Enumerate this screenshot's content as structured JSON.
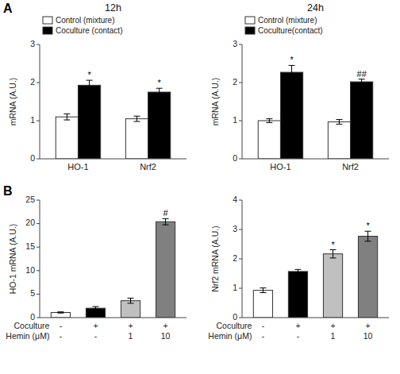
{
  "chart_data": [
    {
      "type": "bar",
      "title": "12h",
      "categories": [
        "HO-1",
        "Nrf2"
      ],
      "series": [
        {
          "name": "Control (mixture)",
          "color": "#ffffff",
          "values": [
            1.1,
            1.05
          ],
          "errors": [
            0.08,
            0.07
          ]
        },
        {
          "name": "Coculture (contact)",
          "color": "#000000",
          "values": [
            1.93,
            1.75
          ],
          "errors": [
            0.13,
            0.1
          ],
          "significance": [
            "*",
            "*"
          ]
        }
      ],
      "y_label": "mRNA (A.U.)",
      "ylim": [
        0,
        3
      ],
      "yticks": [
        0,
        1,
        2,
        3
      ],
      "legend": "upper left",
      "grid": false,
      "annotations": [
        {
          "text": "A"
        }
      ]
    },
    {
      "type": "bar",
      "title": "24h",
      "categories": [
        "HO-1",
        "Nrf2"
      ],
      "series": [
        {
          "name": "Control (mixture)",
          "color": "#ffffff",
          "values": [
            1.0,
            0.97
          ],
          "errors": [
            0.05,
            0.06
          ]
        },
        {
          "name": "Coculture(contact)",
          "color": "#000000",
          "values": [
            2.27,
            2.02
          ],
          "errors": [
            0.18,
            0.07
          ],
          "significance": [
            "*",
            "##"
          ]
        }
      ],
      "y_label": "mRNA (A.U.)",
      "ylim": [
        0,
        3
      ],
      "yticks": [
        0,
        1,
        2,
        3
      ],
      "legend": "upper left",
      "grid": false
    },
    {
      "type": "bar",
      "category_rows": [
        {
          "label": "Coculture",
          "categories": [
            "-",
            "+",
            "+",
            "+"
          ]
        },
        {
          "label": "Hemin (μM)",
          "categories": [
            "-",
            "-",
            "1",
            "10"
          ]
        }
      ],
      "values": [
        1.1,
        2.0,
        3.6,
        20.4
      ],
      "errors": [
        0.12,
        0.35,
        0.55,
        0.65
      ],
      "colors": [
        "#ffffff",
        "#000000",
        "#c0c0c0",
        "#808080"
      ],
      "significance": [
        null,
        null,
        null,
        "#"
      ],
      "y_label": "HO-1 mRNA (A.U.)",
      "ylim": [
        0,
        25
      ],
      "yticks": [
        0,
        5,
        10,
        15,
        20,
        25
      ],
      "grid": false,
      "annotations": [
        {
          "text": "B"
        }
      ]
    },
    {
      "type": "bar",
      "category_rows": [
        {
          "label": "Coculture",
          "categories": [
            "-",
            "+",
            "+",
            "+"
          ]
        },
        {
          "label": "Hemin (μM)",
          "categories": [
            "-",
            "-",
            "1",
            "10"
          ]
        }
      ],
      "values": [
        0.93,
        1.57,
        2.17,
        2.77
      ],
      "errors": [
        0.08,
        0.07,
        0.14,
        0.17
      ],
      "colors": [
        "#ffffff",
        "#000000",
        "#c0c0c0",
        "#808080"
      ],
      "significance": [
        null,
        null,
        "*",
        "*"
      ],
      "y_label": "Nrf2 mRNA (A.U.)",
      "ylim": [
        0,
        4
      ],
      "yticks": [
        0,
        1,
        2,
        3,
        4
      ],
      "grid": false
    }
  ]
}
